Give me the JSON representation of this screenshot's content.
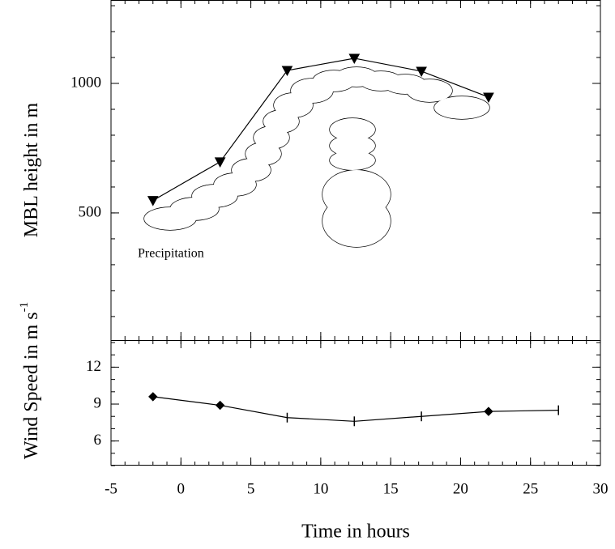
{
  "chart_data": [
    {
      "type": "line",
      "ylabel": "MBL height in m",
      "annotation": "Precipitation",
      "x": [
        -2,
        2.8,
        7.6,
        12.4,
        17.2,
        22
      ],
      "series": [
        {
          "color": "#000000",
          "marker": "triangle-down",
          "values": [
            548,
            697,
            1050,
            1097,
            1047,
            947
          ]
        }
      ],
      "xlim": [
        -5,
        30
      ],
      "xticks": [
        -5,
        0,
        5,
        10,
        15,
        20,
        25,
        30
      ],
      "ylim": [
        9,
        1322
      ],
      "yticks": [
        500,
        1000
      ]
    },
    {
      "type": "line",
      "ylabel": "Wind Speed in m s",
      "ylabel_superscript": "-1",
      "xlabel": "Time in hours",
      "x": [
        -2,
        2.8,
        7.6,
        12.4,
        17.2,
        22,
        27
      ],
      "series": [
        {
          "color": "#000000",
          "markers": [
            "diamond",
            "diamond",
            "tick",
            "tick",
            "tick",
            "diamond",
            "tick"
          ],
          "values": [
            9.6,
            8.9,
            7.9,
            7.6,
            8.0,
            8.4,
            8.5
          ]
        }
      ],
      "xlim": [
        -5,
        30
      ],
      "xticks": [
        -5,
        0,
        5,
        10,
        15,
        20,
        25,
        30
      ],
      "ylim": [
        4,
        14.2
      ],
      "yticks": [
        6,
        9,
        12
      ]
    }
  ]
}
